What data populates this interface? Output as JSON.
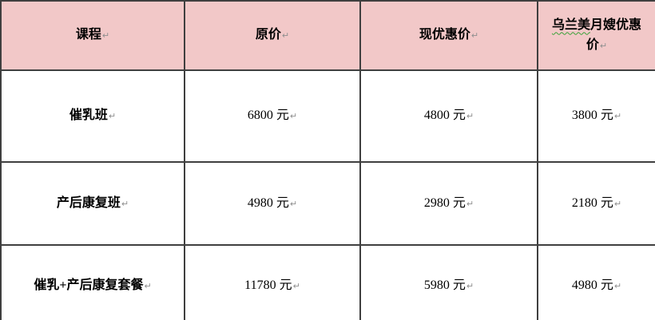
{
  "table": {
    "headers": [
      "课程",
      "原价",
      "现优惠价"
    ],
    "header_last": {
      "marked": "乌兰美",
      "rest": "月嫂优惠价"
    },
    "rows": [
      {
        "cells": [
          "催乳班",
          "6800 元",
          "4800 元",
          "3800 元"
        ]
      },
      {
        "cells": [
          "产后康复班",
          "4980 元",
          "2980 元",
          "2180 元"
        ]
      },
      {
        "cells": [
          "催乳+产后康复套餐",
          "11780 元",
          "5980 元",
          "4980 元"
        ]
      }
    ]
  },
  "icons": {
    "paragraph_mark": "↵"
  },
  "colors": {
    "header_bg": "#f2c8c8",
    "border": "#3f3f3f",
    "text": "#000000",
    "paragraph_mark": "#8f8f8f",
    "spellcheck_underline": "#3aa33a"
  }
}
